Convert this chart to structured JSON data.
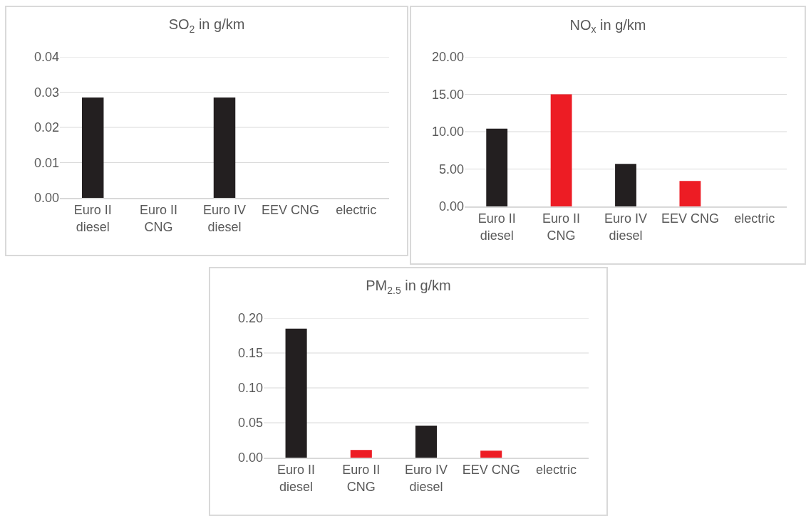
{
  "chart_data": [
    {
      "type": "bar",
      "title": "SO$_{2}$ in g/km",
      "categories": [
        "Euro II\ndiesel",
        "Euro II\nCNG",
        "Euro IV\ndiesel",
        "EEV CNG",
        "electric"
      ],
      "values": [
        0.0285,
        0,
        0.0285,
        0,
        0
      ],
      "colors": [
        "#231f20",
        "#ed1c24",
        "#231f20",
        "#ed1c24",
        "#231f20"
      ],
      "ylim": [
        0,
        0.04
      ],
      "yticks": [
        {
          "value": 0,
          "label": "0.00"
        },
        0.01,
        0.02,
        0.03,
        0.04
      ],
      "grid": "y"
    },
    {
      "type": "bar",
      "title": "NO$_{x}$ in g/km",
      "categories": [
        "Euro II\ndiesel",
        "Euro II\nCNG",
        "Euro IV\ndiesel",
        "EEV CNG",
        "electric"
      ],
      "values": [
        10.4,
        15.0,
        5.7,
        3.4,
        0
      ],
      "colors": [
        "#231f20",
        "#ed1c24",
        "#231f20",
        "#ed1c24",
        "#231f20"
      ],
      "ylim": [
        0,
        20
      ],
      "yticks": [
        {
          "value": 0,
          "label": "0.00"
        },
        {
          "value": 5,
          "label": "5.00"
        },
        {
          "value": 10,
          "label": "10.00"
        },
        {
          "value": 15,
          "label": "15.00"
        },
        {
          "value": 20,
          "label": "20.00"
        }
      ],
      "grid": "y"
    },
    {
      "type": "bar",
      "title": "PM$_{2.5}$ in g/km",
      "categories": [
        "Euro II\ndiesel",
        "Euro II\nCNG",
        "Euro IV\ndiesel",
        "EEV CNG",
        "electric"
      ],
      "values": [
        0.185,
        0.011,
        0.046,
        0.01,
        0
      ],
      "colors": [
        "#231f20",
        "#ed1c24",
        "#231f20",
        "#ed1c24",
        "#231f20"
      ],
      "ylim": [
        0,
        0.2
      ],
      "yticks": [
        {
          "value": 0,
          "label": "0.00"
        },
        0.05,
        {
          "value": 0.1,
          "label": "0.10"
        },
        0.15,
        {
          "value": 0.2,
          "label": "0.20"
        }
      ],
      "grid": "y"
    }
  ]
}
